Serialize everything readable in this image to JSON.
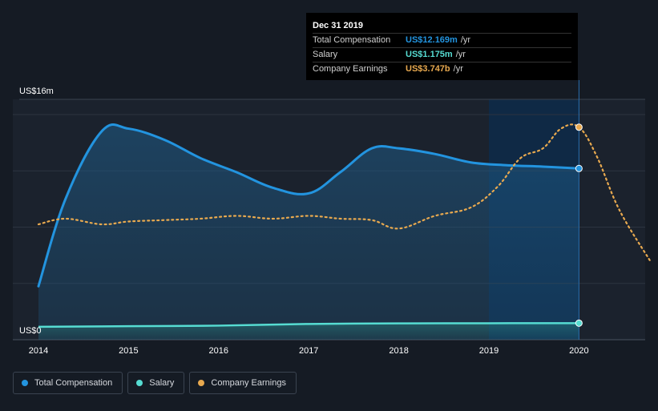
{
  "chart_data": {
    "type": "line",
    "x_ticks": [
      "2014",
      "2015",
      "2016",
      "2017",
      "2018",
      "2019",
      "2020"
    ],
    "y_labels": [
      "US$16m",
      "US$0"
    ],
    "ylim": [
      0,
      16
    ],
    "series": [
      {
        "name": "Total Compensation",
        "color": "#2394df",
        "area": true,
        "points": [
          [
            2014.0,
            3.8
          ],
          [
            2014.3,
            10.0
          ],
          [
            2014.7,
            14.8
          ],
          [
            2015.0,
            15.0
          ],
          [
            2015.4,
            14.2
          ],
          [
            2015.8,
            12.9
          ],
          [
            2016.2,
            11.9
          ],
          [
            2016.6,
            10.8
          ],
          [
            2017.0,
            10.4
          ],
          [
            2017.35,
            11.9
          ],
          [
            2017.7,
            13.6
          ],
          [
            2018.0,
            13.6
          ],
          [
            2018.4,
            13.2
          ],
          [
            2018.8,
            12.6
          ],
          [
            2019.2,
            12.4
          ],
          [
            2019.6,
            12.3
          ],
          [
            2020.0,
            12.169
          ]
        ]
      },
      {
        "name": "Salary",
        "color": "#56dcd2",
        "area": true,
        "points": [
          [
            2014.0,
            0.92
          ],
          [
            2015.0,
            0.96
          ],
          [
            2016.0,
            1.0
          ],
          [
            2017.0,
            1.12
          ],
          [
            2018.0,
            1.16
          ],
          [
            2019.0,
            1.17
          ],
          [
            2020.0,
            1.175
          ]
        ]
      },
      {
        "name": "Company Earnings",
        "color": "#e8a94f",
        "dashed": true,
        "points": [
          [
            2014.0,
            8.2
          ],
          [
            2014.3,
            8.6
          ],
          [
            2014.7,
            8.2
          ],
          [
            2015.0,
            8.4
          ],
          [
            2015.4,
            8.5
          ],
          [
            2015.8,
            8.6
          ],
          [
            2016.2,
            8.8
          ],
          [
            2016.6,
            8.6
          ],
          [
            2017.0,
            8.8
          ],
          [
            2017.35,
            8.6
          ],
          [
            2017.7,
            8.5
          ],
          [
            2018.0,
            7.9
          ],
          [
            2018.4,
            8.8
          ],
          [
            2018.8,
            9.4
          ],
          [
            2019.1,
            10.9
          ],
          [
            2019.35,
            12.9
          ],
          [
            2019.6,
            13.6
          ],
          [
            2019.8,
            15.0
          ],
          [
            2020.0,
            15.1
          ],
          [
            2020.2,
            13.0
          ],
          [
            2020.45,
            9.2
          ],
          [
            2020.8,
            5.5
          ]
        ]
      }
    ],
    "highlight_range": [
      2019.0,
      2020.0
    ],
    "tooltip": {
      "title": "Dec 31 2019",
      "rows": [
        {
          "label": "Total Compensation",
          "value": "US$12.169m",
          "unit": "/yr",
          "color": "#2394df"
        },
        {
          "label": "Salary",
          "value": "US$1.175m",
          "unit": "/yr",
          "color": "#56dcd2"
        },
        {
          "label": "Company Earnings",
          "value": "US$3.747b",
          "unit": "/yr",
          "color": "#e8a94f"
        }
      ]
    },
    "legend": [
      "Total Compensation",
      "Salary",
      "Company Earnings"
    ],
    "legend_colors": [
      "#2394df",
      "#56dcd2",
      "#e8a94f"
    ],
    "grid": true
  }
}
